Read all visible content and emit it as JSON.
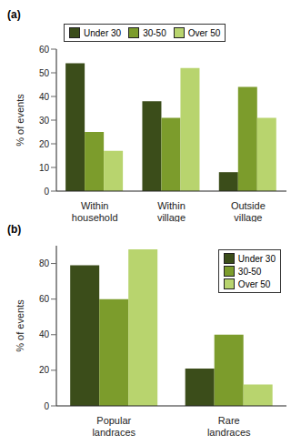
{
  "chart_data": [
    {
      "type": "bar",
      "title": "(a)",
      "y_label": "% of events",
      "categories": [
        "Within household",
        "Within village",
        "Outside village"
      ],
      "series": [
        {
          "name": "Under 30",
          "color": "#3b4d1a",
          "values": [
            54,
            38,
            8
          ]
        },
        {
          "name": "30-50",
          "color": "#7c9c2c",
          "values": [
            25,
            31,
            44
          ]
        },
        {
          "name": "Over 50",
          "color": "#b8d46e",
          "values": [
            17,
            52,
            31
          ]
        }
      ],
      "ylim": [
        0,
        60
      ],
      "yticks": [
        0,
        10,
        20,
        30,
        40,
        50,
        60
      ],
      "legend": "top-left",
      "grid": false
    },
    {
      "type": "bar",
      "title": "(b)",
      "y_label": "% of events",
      "categories": [
        "Popular landraces",
        "Rare landraces"
      ],
      "series": [
        {
          "name": "Under 30",
          "color": "#3b4d1a",
          "values": [
            79,
            21
          ]
        },
        {
          "name": "30-50",
          "color": "#7c9c2c",
          "values": [
            60,
            40
          ]
        },
        {
          "name": "Over 50",
          "color": "#b8d46e",
          "values": [
            88,
            12
          ]
        }
      ],
      "ylim": [
        0,
        90
      ],
      "yticks": [
        0,
        20,
        40,
        60,
        80
      ],
      "legend": "top-right",
      "grid": false
    }
  ]
}
